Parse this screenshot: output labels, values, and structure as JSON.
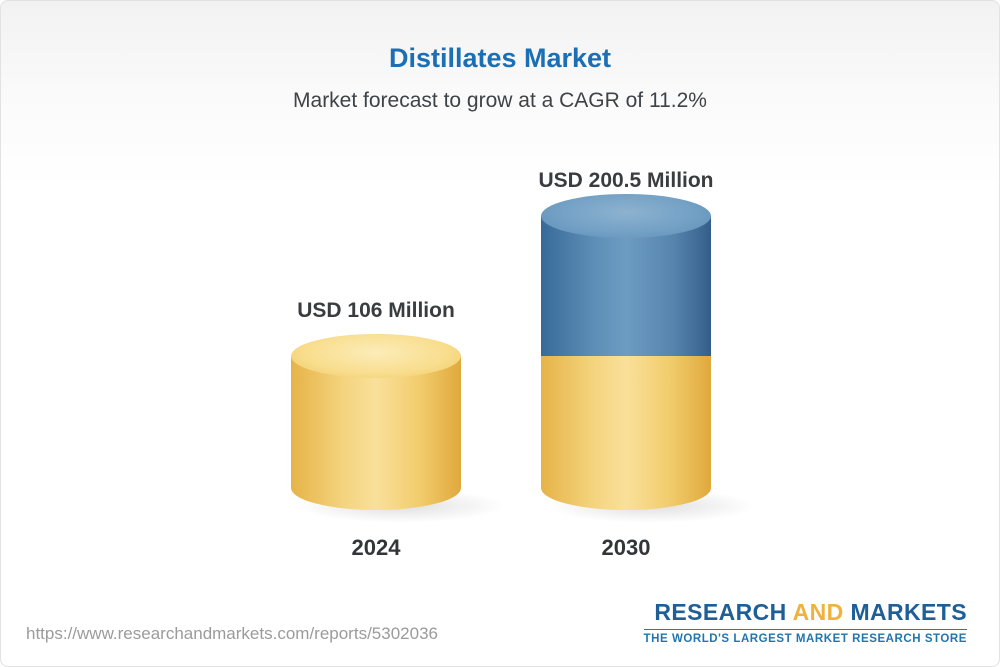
{
  "page": {
    "title": "Distillates Market",
    "subtitle": "Market forecast to grow at a CAGR of 11.2%"
  },
  "chart_data": {
    "type": "bar",
    "subtype": "3d-cylinder",
    "title": "Distillates Market",
    "subtitle": "Market forecast to grow at a CAGR of 11.2%",
    "cagr_percent": 11.2,
    "unit": "USD Million",
    "categories": [
      "2024",
      "2030"
    ],
    "values": [
      106,
      200.5
    ],
    "value_labels": [
      "USD 106 Million",
      "USD 200.5 Million"
    ],
    "series": [
      {
        "name": "base",
        "values": [
          106,
          106
        ],
        "color": "#f2cd6e"
      },
      {
        "name": "growth",
        "values": [
          0,
          94.5
        ],
        "color": "#5684ad"
      }
    ],
    "ylim": [
      0,
      220
    ],
    "grid": false,
    "legend": "none",
    "colors": {
      "base": "#f2cd6e",
      "growth": "#5684ad",
      "title": "#1a6fb5"
    }
  },
  "footer": {
    "url": "https://www.researchandmarkets.com/reports/5302036",
    "logo": {
      "research": "RESEARCH",
      "and": "AND",
      "markets": "MARKETS",
      "tagline": "THE WORLD'S LARGEST MARKET RESEARCH STORE"
    }
  }
}
